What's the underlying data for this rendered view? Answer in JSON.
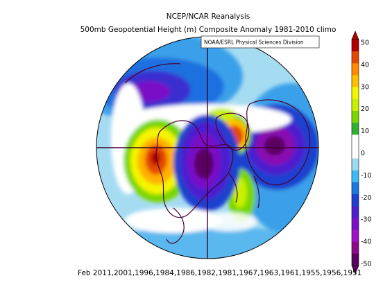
{
  "title": {
    "line1": "NCEP/NCAR Reanalysis",
    "line2": "500mb Geopotential Height (m) Composite Anomaly 1981-2010 climo"
  },
  "credit": "NOAA/ESRL Physical Sciences Division",
  "footer": "Feb 2011,2001,1996,1984,1986,1982,1981,1967,1963,1961,1955,1956,1951",
  "colorbar": {
    "tick_labels": [
      "50",
      "40",
      "30",
      "20",
      "10",
      "0",
      "-10",
      "-20",
      "-30",
      "-40",
      "-50"
    ],
    "colors": [
      "#b20000",
      "#e34a00",
      "#ff8c00",
      "#ffc000",
      "#f5f500",
      "#c8f000",
      "#7ad600",
      "#30b030",
      "#ffffff",
      "#ffffff",
      "#a0d8f0",
      "#40b8f0",
      "#1a78e0",
      "#1f3fcf",
      "#4d1fcf",
      "#7a10c8",
      "#a010c8",
      "#8a0a8a",
      "#5a0060"
    ]
  },
  "map": {
    "projection": "north-polar-stereographic",
    "land_outline_color": "#4a0030",
    "anomaly_centers": [
      {
        "region": "north-pacific-west",
        "sign": "negative",
        "value_m": -40
      },
      {
        "region": "gulf-of-alaska",
        "sign": "positive",
        "value_m": 50
      },
      {
        "region": "canada-hudson",
        "sign": "negative",
        "value_m": -50
      },
      {
        "region": "greenland",
        "sign": "positive",
        "value_m": 40
      },
      {
        "region": "siberia-arctic",
        "sign": "negative",
        "value_m": -50
      },
      {
        "region": "north-atlantic",
        "sign": "positive",
        "value_m": 20
      }
    ]
  }
}
